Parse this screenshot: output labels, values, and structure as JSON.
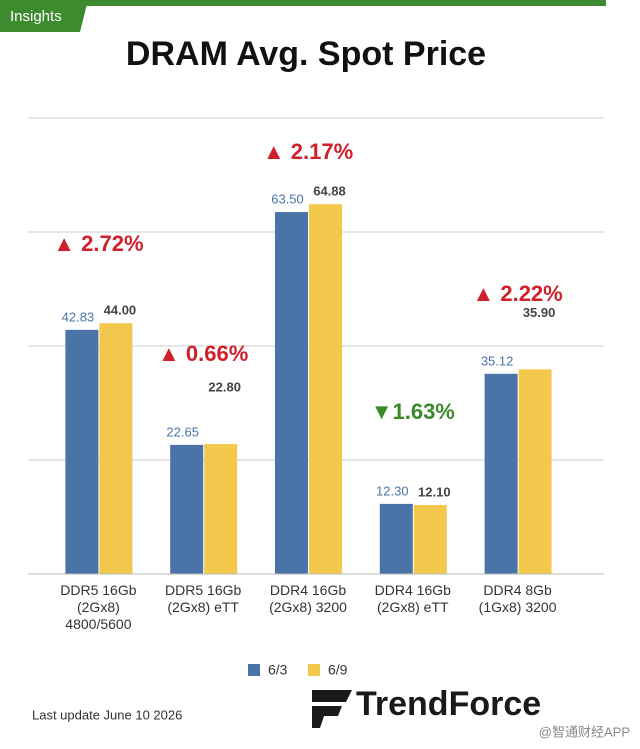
{
  "badge": "Insights",
  "chart_data": {
    "type": "bar",
    "title": "DRAM Avg. Spot Price",
    "categories": [
      "DDR5 16Gb\n(2Gx8)\n4800/5600",
      "DDR5 16Gb\n(2Gx8) eTT",
      "DDR4 16Gb\n(2Gx8) 3200",
      "DDR4 16Gb\n(2Gx8) eTT",
      "DDR4 8Gb\n(1Gx8) 3200"
    ],
    "series": [
      {
        "name": "6/3",
        "color": "#4a73a8",
        "values": [
          42.83,
          22.65,
          63.5,
          12.3,
          35.12
        ],
        "value_labels": [
          "42.83",
          "22.65",
          "63.50",
          "12.30",
          "35.12"
        ]
      },
      {
        "name": "6/9",
        "color": "#f2c94c",
        "values": [
          44,
          22.8,
          64.88,
          12.1,
          35.9
        ],
        "value_labels": [
          "44.00",
          "22.80",
          "64.88",
          "12.10",
          "35.90"
        ]
      }
    ],
    "annotations": [
      {
        "text": "▲ 2.72%",
        "color": "#d0202a"
      },
      {
        "text": "▲ 0.66%",
        "color": "#d0202a"
      },
      {
        "text": "▲ 2.17%",
        "color": "#d0202a"
      },
      {
        "text": "▼1.63%",
        "color": "#3a8a2a"
      },
      {
        "text": "▲ 2.22%",
        "color": "#d0202a"
      }
    ],
    "ylim": [
      0,
      80
    ],
    "yticks": [
      0,
      20,
      40,
      60,
      80
    ],
    "grid": true
  },
  "footer": "Last update  June 10  2026",
  "logo": "TrendForce",
  "watermark": "@智通财经APP"
}
